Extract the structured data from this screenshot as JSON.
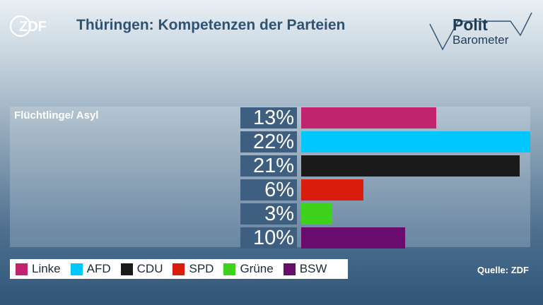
{
  "header": {
    "brand": "ZDF",
    "title": "Thüringen: Kompetenzen der Parteien",
    "logo_line1": "Polit",
    "logo_line2": "Barometer"
  },
  "source": "Quelle: ZDF",
  "chart_data": {
    "type": "bar",
    "orientation": "horizontal",
    "category": "Flüchtlinge/ Asyl",
    "unit": "%",
    "xlim": [
      0,
      22
    ],
    "series": [
      {
        "name": "Linke",
        "value": 13,
        "label": "13%",
        "color": "#c0246e"
      },
      {
        "name": "AFD",
        "value": 22,
        "label": "22%",
        "color": "#00c8ff"
      },
      {
        "name": "CDU",
        "value": 21,
        "label": "21%",
        "color": "#1a1a1a"
      },
      {
        "name": "SPD",
        "value": 6,
        "label": "6%",
        "color": "#d91c0b"
      },
      {
        "name": "Grüne",
        "value": 3,
        "label": "3%",
        "color": "#3fd21c"
      },
      {
        "name": "BSW",
        "value": 10,
        "label": "10%",
        "color": "#6a0b6e"
      }
    ],
    "legend_position": "bottom-left"
  }
}
